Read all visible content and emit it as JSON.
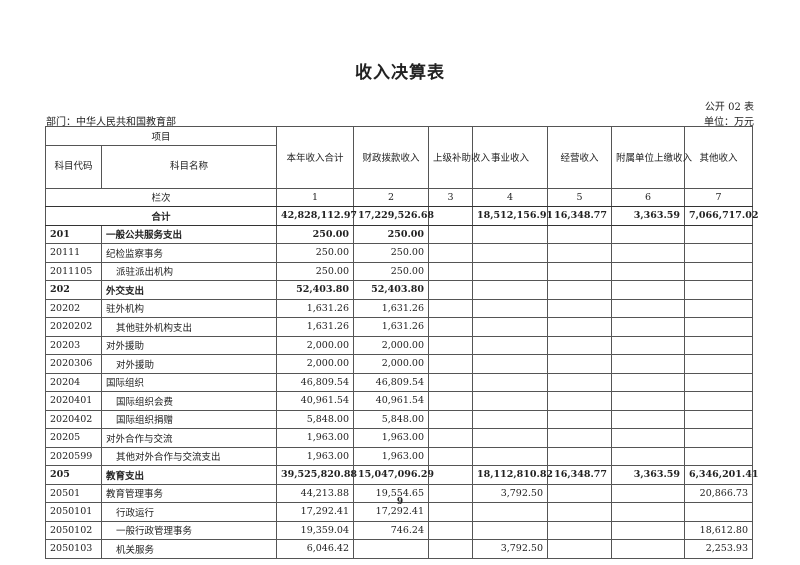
{
  "title": "收入决算表",
  "form_no": "公开 02 表",
  "department": "部门：中华人民共和国教育部",
  "unit": "单位：万元",
  "header": {
    "item": "项目",
    "code": "科目代码",
    "name": "科目名称",
    "cols": [
      "本年收入合计",
      "财政拨款收入",
      "上级补助收入",
      "事业收入",
      "经营收入",
      "附属单位上缴收入",
      "其他收入"
    ],
    "row_index_label": "栏次",
    "row_index": [
      "1",
      "2",
      "3",
      "4",
      "5",
      "6",
      "7"
    ]
  },
  "total": {
    "label": "合计",
    "values": [
      "42,828,112.97",
      "17,229,526.68",
      "",
      "18,512,156.91",
      "16,348.77",
      "3,363.59",
      "7,066,717.02"
    ]
  },
  "rows": [
    {
      "code": "201",
      "name": "一般公共服务支出",
      "bold": true,
      "indent": false,
      "values": [
        "250.00",
        "250.00",
        "",
        "",
        "",
        "",
        ""
      ]
    },
    {
      "code": "20111",
      "name": "纪检监察事务",
      "bold": false,
      "indent": false,
      "values": [
        "250.00",
        "250.00",
        "",
        "",
        "",
        "",
        ""
      ]
    },
    {
      "code": "2011105",
      "name": "派驻派出机构",
      "bold": false,
      "indent": true,
      "values": [
        "250.00",
        "250.00",
        "",
        "",
        "",
        "",
        ""
      ]
    },
    {
      "code": "202",
      "name": "外交支出",
      "bold": true,
      "indent": false,
      "values": [
        "52,403.80",
        "52,403.80",
        "",
        "",
        "",
        "",
        ""
      ]
    },
    {
      "code": "20202",
      "name": "驻外机构",
      "bold": false,
      "indent": false,
      "values": [
        "1,631.26",
        "1,631.26",
        "",
        "",
        "",
        "",
        ""
      ]
    },
    {
      "code": "2020202",
      "name": "其他驻外机构支出",
      "bold": false,
      "indent": true,
      "values": [
        "1,631.26",
        "1,631.26",
        "",
        "",
        "",
        "",
        ""
      ]
    },
    {
      "code": "20203",
      "name": "对外援助",
      "bold": false,
      "indent": false,
      "values": [
        "2,000.00",
        "2,000.00",
        "",
        "",
        "",
        "",
        ""
      ]
    },
    {
      "code": "2020306",
      "name": "对外援助",
      "bold": false,
      "indent": true,
      "values": [
        "2,000.00",
        "2,000.00",
        "",
        "",
        "",
        "",
        ""
      ]
    },
    {
      "code": "20204",
      "name": "国际组织",
      "bold": false,
      "indent": false,
      "values": [
        "46,809.54",
        "46,809.54",
        "",
        "",
        "",
        "",
        ""
      ]
    },
    {
      "code": "2020401",
      "name": "国际组织会费",
      "bold": false,
      "indent": true,
      "values": [
        "40,961.54",
        "40,961.54",
        "",
        "",
        "",
        "",
        ""
      ]
    },
    {
      "code": "2020402",
      "name": "国际组织捐赠",
      "bold": false,
      "indent": true,
      "values": [
        "5,848.00",
        "5,848.00",
        "",
        "",
        "",
        "",
        ""
      ]
    },
    {
      "code": "20205",
      "name": "对外合作与交流",
      "bold": false,
      "indent": false,
      "values": [
        "1,963.00",
        "1,963.00",
        "",
        "",
        "",
        "",
        ""
      ]
    },
    {
      "code": "2020599",
      "name": "其他对外合作与交流支出",
      "bold": false,
      "indent": true,
      "values": [
        "1,963.00",
        "1,963.00",
        "",
        "",
        "",
        "",
        ""
      ]
    },
    {
      "code": "205",
      "name": "教育支出",
      "bold": true,
      "indent": false,
      "values": [
        "39,525,820.88",
        "15,047,096.29",
        "",
        "18,112,810.82",
        "16,348.77",
        "3,363.59",
        "6,346,201.41"
      ]
    },
    {
      "code": "20501",
      "name": "教育管理事务",
      "bold": false,
      "indent": false,
      "values": [
        "44,213.88",
        "19,554.65",
        "",
        "3,792.50",
        "",
        "",
        "20,866.73"
      ]
    },
    {
      "code": "2050101",
      "name": "行政运行",
      "bold": false,
      "indent": true,
      "values": [
        "17,292.41",
        "17,292.41",
        "",
        "",
        "",
        "",
        ""
      ]
    },
    {
      "code": "2050102",
      "name": "一般行政管理事务",
      "bold": false,
      "indent": true,
      "values": [
        "19,359.04",
        "746.24",
        "",
        "",
        "",
        "",
        "18,612.80"
      ]
    },
    {
      "code": "2050103",
      "name": "机关服务",
      "bold": false,
      "indent": true,
      "values": [
        "6,046.42",
        "",
        "",
        "3,792.50",
        "",
        "",
        "2,253.93"
      ]
    }
  ],
  "page_number": "9"
}
